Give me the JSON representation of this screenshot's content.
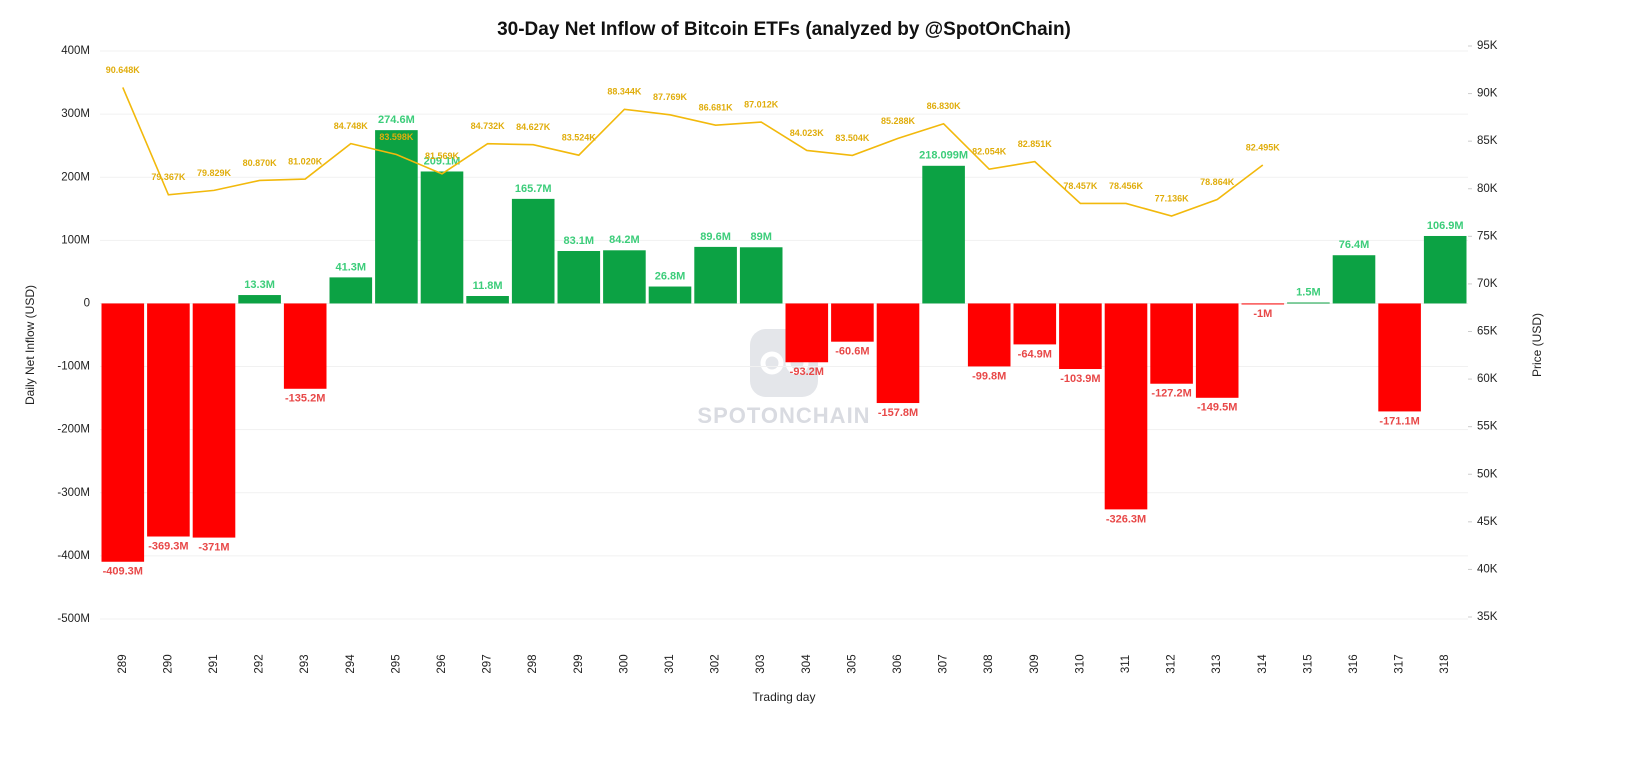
{
  "chart_data": {
    "type": "bar",
    "title": "30-Day Net Inflow of Bitcoin ETFs (analyzed by @SpotOnChain)",
    "watermark": "SPOTONCHAIN",
    "xlabel": "Trading day",
    "ylabel": "Daily Net Inflow (USD)",
    "y2label": "Price (USD)",
    "categories": [
      "289",
      "290",
      "291",
      "292",
      "293",
      "294",
      "295",
      "296",
      "297",
      "298",
      "299",
      "300",
      "301",
      "302",
      "303",
      "304",
      "305",
      "306",
      "307",
      "308",
      "309",
      "310",
      "311",
      "312",
      "313",
      "314",
      "315",
      "316",
      "317",
      "318"
    ],
    "series": [
      {
        "name": "Net Inflow",
        "type": "bar",
        "positive_color": "#0ca244",
        "negative_color": "#ff0000",
        "values": [
          -409.3,
          -369.3,
          -371,
          13.3,
          -135.2,
          41.3,
          274.6,
          209.1,
          11.8,
          165.7,
          83.1,
          84.2,
          26.8,
          89.6,
          89,
          -93.2,
          -60.6,
          -157.8,
          218.099,
          -99.8,
          -64.9,
          -103.9,
          -326.3,
          -127.2,
          -149.5,
          -1,
          1.5,
          76.4,
          -171.1,
          106.9
        ],
        "value_labels": [
          "-409.3M",
          "-369.3M",
          "-371M",
          "13.3M",
          "-135.2M",
          "41.3M",
          "274.6M",
          "209.1M",
          "11.8M",
          "165.7M",
          "83.1M",
          "84.2M",
          "26.8M",
          "89.6M",
          "89M",
          "-93.2M",
          "-60.6M",
          "-157.8M",
          "218.099M",
          "-99.8M",
          "-64.9M",
          "-103.9M",
          "-326.3M",
          "-127.2M",
          "-149.5M",
          "-1M",
          "1.5M",
          "76.4M",
          "-171.1M",
          "106.9M"
        ]
      },
      {
        "name": "Price",
        "type": "line",
        "axis": "y2",
        "color": "#f2b90c",
        "values": [
          90.648,
          79.367,
          79.829,
          80.87,
          81.02,
          84.748,
          83.598,
          81.569,
          84.732,
          84.627,
          83.524,
          88.344,
          87.769,
          86.681,
          87.012,
          84.023,
          83.504,
          85.288,
          86.83,
          82.054,
          82.851,
          78.457,
          78.456,
          77.136,
          78.864,
          82.495,
          null,
          null,
          null,
          null
        ],
        "value_labels": [
          "90.648K",
          "79.367K",
          "79.829K",
          "80.870K",
          "81.020K",
          "84.748K",
          "83.598K",
          "81.569K",
          "84.732K",
          "84.627K",
          "83.524K",
          "88.344K",
          "87.769K",
          "86.681K",
          "87.012K",
          "84.023K",
          "83.504K",
          "85.288K",
          "86.830K",
          "82.054K",
          "82.851K",
          "78.457K",
          "78.456K",
          "77.136K",
          "78.864K",
          "82.495K",
          null,
          null,
          null,
          null
        ]
      }
    ],
    "ylim": [
      -500,
      400
    ],
    "yticks": [
      {
        "value": -500,
        "label": "-500M"
      },
      {
        "value": -400,
        "label": "-400M"
      },
      {
        "value": -300,
        "label": "-300M"
      },
      {
        "value": -200,
        "label": "-200M"
      },
      {
        "value": -100,
        "label": "-100M"
      },
      0,
      {
        "value": 100,
        "label": "100M"
      },
      {
        "value": 200,
        "label": "200M"
      },
      {
        "value": 300,
        "label": "300M"
      },
      {
        "value": 400,
        "label": "400M"
      }
    ],
    "y2lim": [
      35,
      95
    ],
    "y2ticks": [
      {
        "value": 35,
        "label": "35K"
      },
      {
        "value": 40,
        "label": "40K"
      },
      {
        "value": 45,
        "label": "45K"
      },
      {
        "value": 50,
        "label": "50K"
      },
      {
        "value": 55,
        "label": "55K"
      },
      {
        "value": 60,
        "label": "60K"
      },
      {
        "value": 65,
        "label": "65K"
      },
      {
        "value": 70,
        "label": "70K"
      },
      {
        "value": 75,
        "label": "75K"
      },
      {
        "value": 80,
        "label": "80K"
      },
      {
        "value": 85,
        "label": "85K"
      },
      {
        "value": 90,
        "label": "90K"
      },
      {
        "value": 95,
        "label": "95K"
      }
    ],
    "grid": true
  }
}
